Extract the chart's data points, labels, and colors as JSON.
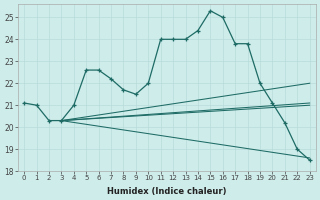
{
  "xlabel": "Humidex (Indice chaleur)",
  "background_color": "#ceecea",
  "grid_color": "#b8dbd9",
  "line_color": "#1e6b65",
  "xlim": [
    -0.5,
    23.5
  ],
  "ylim": [
    18,
    25.6
  ],
  "yticks": [
    18,
    19,
    20,
    21,
    22,
    23,
    24,
    25
  ],
  "xticks": [
    0,
    1,
    2,
    3,
    4,
    5,
    6,
    7,
    8,
    9,
    10,
    11,
    12,
    13,
    14,
    15,
    16,
    17,
    18,
    19,
    20,
    21,
    22,
    23
  ],
  "main_series": [
    21.1,
    21.0,
    20.3,
    20.3,
    21.0,
    22.6,
    22.6,
    22.2,
    21.7,
    21.5,
    22.0,
    24.0,
    24.0,
    24.0,
    24.4,
    25.3,
    25.0,
    23.8,
    23.8,
    22.0,
    21.1,
    20.2,
    19.0,
    18.5
  ],
  "fan_lines": [
    {
      "x0": 3,
      "y0": 20.3,
      "x1": 23,
      "y1": 22.0
    },
    {
      "x0": 3,
      "y0": 20.3,
      "x1": 23,
      "y1": 21.0
    },
    {
      "x0": 3,
      "y0": 20.3,
      "x1": 23,
      "y1": 21.1
    },
    {
      "x0": 3,
      "y0": 20.3,
      "x1": 23,
      "y1": 18.6
    }
  ]
}
